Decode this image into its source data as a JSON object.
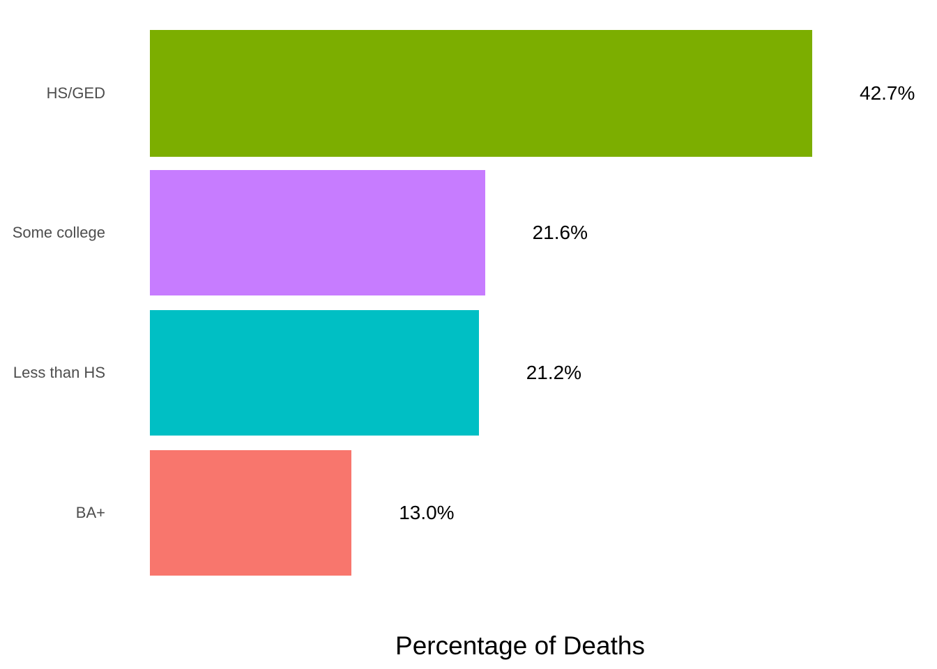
{
  "chart_data": {
    "type": "bar",
    "orientation": "horizontal",
    "title": "",
    "xlabel": "Percentage of Deaths",
    "ylabel": "",
    "categories": [
      "HS/GED",
      "Some college",
      "Less than HS",
      "BA+"
    ],
    "values": [
      42.7,
      21.6,
      21.2,
      13.0
    ],
    "value_labels": [
      "42.7%",
      "21.6%",
      "21.2%",
      "13.0%"
    ],
    "bar_colors": [
      "#7CAE00",
      "#C77CFF",
      "#00BFC4",
      "#F8766D"
    ],
    "xlim": [
      0,
      42.7
    ],
    "grid": false,
    "legend": false,
    "background_color": "#FFFFFF",
    "axis_text_color": "#4D4D4D",
    "value_label_color": "#000000"
  }
}
